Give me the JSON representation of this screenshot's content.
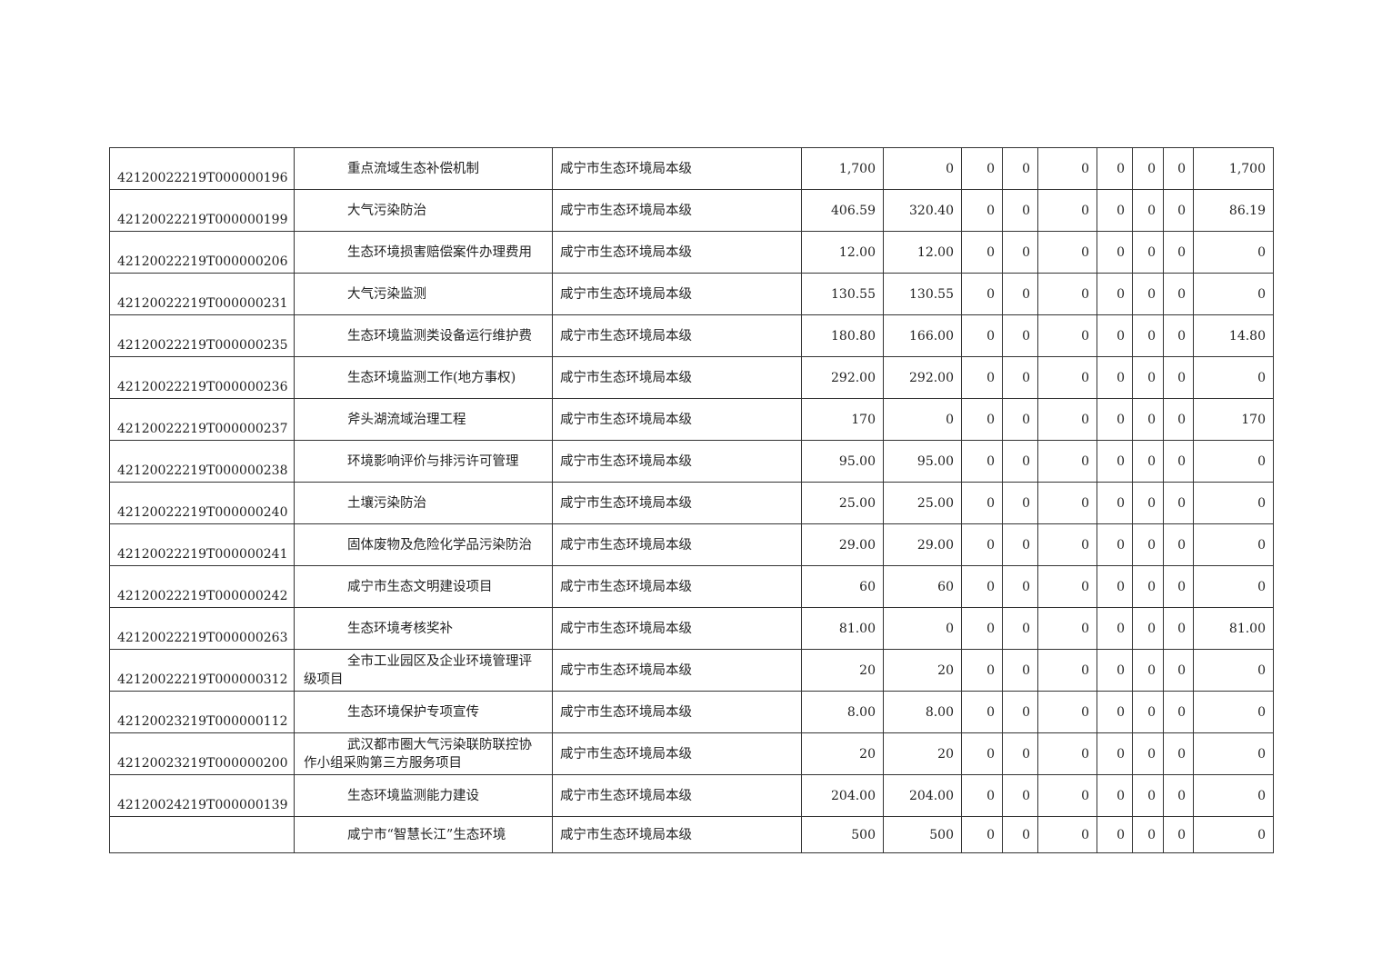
{
  "rows": [
    {
      "code": "42120022219T000000196",
      "name": "重点流域生态补偿机制",
      "unit": "咸宁市生态环境局本级",
      "v": [
        "1,700",
        "0",
        "0",
        "0",
        "0",
        "0",
        "0",
        "0",
        "1,700"
      ]
    },
    {
      "code": "42120022219T000000199",
      "name": "大气污染防治",
      "unit": "咸宁市生态环境局本级",
      "v": [
        "406.59",
        "320.40",
        "0",
        "0",
        "0",
        "0",
        "0",
        "0",
        "86.19"
      ]
    },
    {
      "code": "42120022219T000000206",
      "name": "生态环境损害赔偿案件办理费用",
      "unit": "咸宁市生态环境局本级",
      "v": [
        "12.00",
        "12.00",
        "0",
        "0",
        "0",
        "0",
        "0",
        "0",
        "0"
      ]
    },
    {
      "code": "42120022219T000000231",
      "name": "大气污染监测",
      "unit": "咸宁市生态环境局本级",
      "v": [
        "130.55",
        "130.55",
        "0",
        "0",
        "0",
        "0",
        "0",
        "0",
        "0"
      ]
    },
    {
      "code": "42120022219T000000235",
      "name": "生态环境监测类设备运行维护费",
      "unit": "咸宁市生态环境局本级",
      "v": [
        "180.80",
        "166.00",
        "0",
        "0",
        "0",
        "0",
        "0",
        "0",
        "14.80"
      ]
    },
    {
      "code": "42120022219T000000236",
      "name": "生态环境监测工作(地方事权)",
      "unit": "咸宁市生态环境局本级",
      "v": [
        "292.00",
        "292.00",
        "0",
        "0",
        "0",
        "0",
        "0",
        "0",
        "0"
      ]
    },
    {
      "code": "42120022219T000000237",
      "name": "斧头湖流域治理工程",
      "unit": "咸宁市生态环境局本级",
      "v": [
        "170",
        "0",
        "0",
        "0",
        "0",
        "0",
        "0",
        "0",
        "170"
      ]
    },
    {
      "code": "42120022219T000000238",
      "name": "环境影响评价与排污许可管理",
      "unit": "咸宁市生态环境局本级",
      "v": [
        "95.00",
        "95.00",
        "0",
        "0",
        "0",
        "0",
        "0",
        "0",
        "0"
      ]
    },
    {
      "code": "42120022219T000000240",
      "name": "土壤污染防治",
      "unit": "咸宁市生态环境局本级",
      "v": [
        "25.00",
        "25.00",
        "0",
        "0",
        "0",
        "0",
        "0",
        "0",
        "0"
      ]
    },
    {
      "code": "42120022219T000000241",
      "name": "固体废物及危险化学品污染防治",
      "unit": "咸宁市生态环境局本级",
      "v": [
        "29.00",
        "29.00",
        "0",
        "0",
        "0",
        "0",
        "0",
        "0",
        "0"
      ]
    },
    {
      "code": "42120022219T000000242",
      "name": "咸宁市生态文明建设项目",
      "unit": "咸宁市生态环境局本级",
      "v": [
        "60",
        "60",
        "0",
        "0",
        "0",
        "0",
        "0",
        "0",
        "0"
      ]
    },
    {
      "code": "42120022219T000000263",
      "name": "生态环境考核奖补",
      "unit": "咸宁市生态环境局本级",
      "v": [
        "81.00",
        "0",
        "0",
        "0",
        "0",
        "0",
        "0",
        "0",
        "81.00"
      ]
    },
    {
      "code": "42120022219T000000312",
      "name": "全市工业园区及企业环境管理评级项目",
      "unit": "咸宁市生态环境局本级",
      "v": [
        "20",
        "20",
        "0",
        "0",
        "0",
        "0",
        "0",
        "0",
        "0"
      ]
    },
    {
      "code": "42120023219T000000112",
      "name": "生态环境保护专项宣传",
      "unit": "咸宁市生态环境局本级",
      "v": [
        "8.00",
        "8.00",
        "0",
        "0",
        "0",
        "0",
        "0",
        "0",
        "0"
      ]
    },
    {
      "code": "42120023219T000000200",
      "name": "武汉都市圈大气污染联防联控协作小组采购第三方服务项目",
      "unit": "咸宁市生态环境局本级",
      "v": [
        "20",
        "20",
        "0",
        "0",
        "0",
        "0",
        "0",
        "0",
        "0"
      ]
    },
    {
      "code": "42120024219T000000139",
      "name": "生态环境监测能力建设",
      "unit": "咸宁市生态环境局本级",
      "v": [
        "204.00",
        "204.00",
        "0",
        "0",
        "0",
        "0",
        "0",
        "0",
        "0"
      ]
    },
    {
      "code": "",
      "name": "咸宁市“智慧长江”生态环境",
      "unit": "咸宁市生态环境局本级",
      "v": [
        "500",
        "500",
        "0",
        "0",
        "0",
        "0",
        "0",
        "0",
        "0"
      ]
    }
  ]
}
